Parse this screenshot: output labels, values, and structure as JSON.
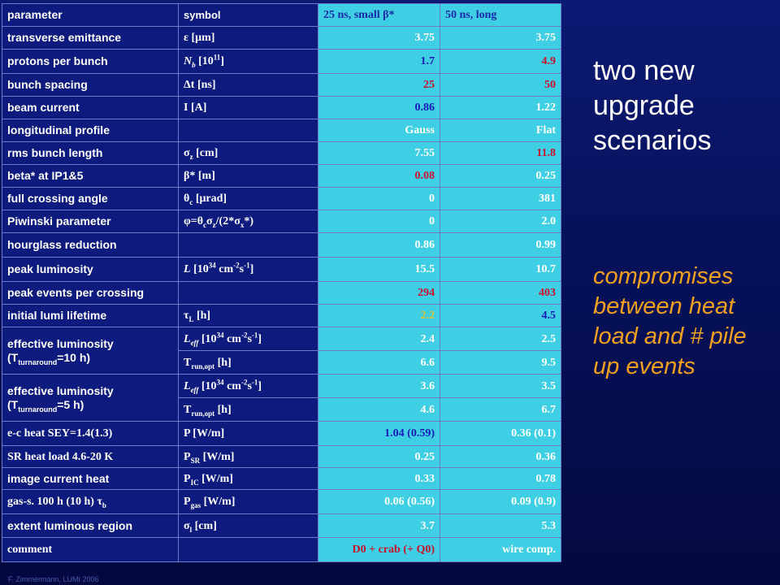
{
  "table": {
    "header": {
      "parameter": "parameter",
      "symbol": "symbol",
      "col1": "25 ns, small β*",
      "col2": "50 ns, long"
    },
    "rows": [
      {
        "parameter": "transverse emittance",
        "symbol": "ε [μm]",
        "v1": "3.75",
        "v2": "3.75"
      },
      {
        "parameter": "protons per bunch",
        "symbol": "Nb [10^11]",
        "v1": "1.7",
        "v2": "4.9"
      },
      {
        "parameter": "bunch spacing",
        "symbol": "Δt [ns]",
        "v1": "25",
        "v2": "50"
      },
      {
        "parameter": "beam current",
        "symbol": "I [A]",
        "v1": "0.86",
        "v2": "1.22"
      },
      {
        "parameter": "longitudinal profile",
        "symbol": "",
        "v1": "Gauss",
        "v2": "Flat"
      },
      {
        "parameter": "rms bunch length",
        "symbol": "σz [cm]",
        "v1": "7.55",
        "v2": "11.8"
      },
      {
        "parameter": "beta* at IP1&5",
        "symbol": "β* [m]",
        "v1": "0.08",
        "v2": "0.25"
      },
      {
        "parameter": "full crossing angle",
        "symbol": "θc [μrad]",
        "v1": "0",
        "v2": "381"
      },
      {
        "parameter": "Piwinski parameter",
        "symbol": "φ=θcσz/(2*σx*)",
        "v1": "0",
        "v2": "2.0"
      },
      {
        "parameter": "hourglass reduction",
        "symbol": "",
        "v1": "0.86",
        "v2": "0.99"
      },
      {
        "parameter": "peak luminosity",
        "symbol": "L [10^34 cm-2s-1]",
        "v1": "15.5",
        "v2": "10.7"
      },
      {
        "parameter": "peak events per crossing",
        "symbol": "",
        "v1": "294",
        "v2": "403"
      },
      {
        "parameter": "initial lumi lifetime",
        "symbol": "τL [h]",
        "v1": "2.2",
        "v2": "4.5"
      },
      {
        "parameter": "effective luminosity (Tturnaround=10 h)",
        "symbol": "Leff [10^34 cm-2s-1]",
        "v1": "2.4",
        "v2": "2.5"
      },
      {
        "parameter": "",
        "symbol": "Trun,opt [h]",
        "v1": "6.6",
        "v2": "9.5"
      },
      {
        "parameter": "effective luminosity (Tturnaround=5 h)",
        "symbol": "Leff [10^34 cm-2s-1]",
        "v1": "3.6",
        "v2": "3.5"
      },
      {
        "parameter": "",
        "symbol": "Trun,opt [h]",
        "v1": "4.6",
        "v2": "6.7"
      },
      {
        "parameter": "e-c heat SEY=1.4(1.3)",
        "symbol": "P [W/m]",
        "v1": "1.04 (0.59)",
        "v2": "0.36 (0.1)"
      },
      {
        "parameter": "SR heat load 4.6-20 K",
        "symbol": "PSR [W/m]",
        "v1": "0.25",
        "v2": "0.36"
      },
      {
        "parameter": "image current heat",
        "symbol": "PIC [W/m]",
        "v1": "0.33",
        "v2": "0.78"
      },
      {
        "parameter": "gas-s. 100 h (10 h) τb",
        "symbol": "Pgas [W/m]",
        "v1": "0.06 (0.56)",
        "v2": "0.09 (0.9)"
      },
      {
        "parameter": "extent luminous region",
        "symbol": "σl [cm]",
        "v1": "3.7",
        "v2": "5.3"
      },
      {
        "parameter": "comment",
        "symbol": "",
        "v1": "D0 + crab (+ Q0)",
        "v2": "wire comp."
      }
    ]
  },
  "side": {
    "title": "two new upgrade scenarios",
    "note": "compromises between heat load and # pile up events"
  },
  "footer": "F. Zimmermann, LUMI 2006"
}
